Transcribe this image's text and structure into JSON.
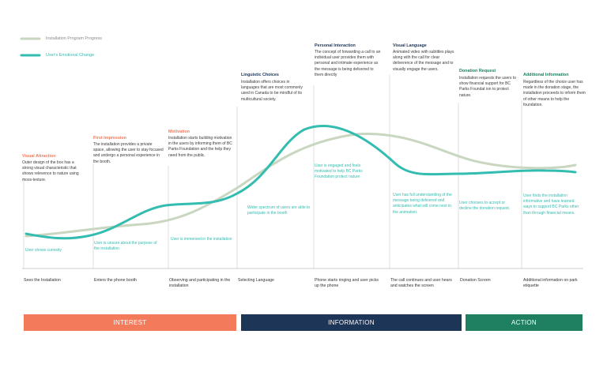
{
  "legend": {
    "progress_label": "Installation Program Progress",
    "emotion_label": "User's Emotional Change",
    "progress_color": "#c9d6c0",
    "emotion_color": "#33bcb0"
  },
  "colors": {
    "orange": "#f37a5a",
    "navy": "#1d3557",
    "green": "#1e7f61"
  },
  "cards": [
    {
      "title": "Visual Attraction",
      "text": "Outer design of the box has a strong visual characteristic that shows relevence to nature using moss-texture."
    },
    {
      "title": "First Impression",
      "text": "The installation provides a private space, allowing the user to stay focused and undergo a personal experience in the booth."
    },
    {
      "title": "Motivation",
      "text": "Installation starts building motivation in the users by informing them of BC Parks Foundation and the help they need from the public."
    },
    {
      "title": "Linguistic Choices",
      "text": "Installation offers choices in languages that are most commonly used in Canada to be mindful of its multicultural society."
    },
    {
      "title": "Personal Interaction",
      "text": "The concept of forwarding a call to an individual user provides them with personal and intimate experience as the message is being delivered to them directly"
    },
    {
      "title": "Visual Language",
      "text": "Animated video with subtitles plays along with the call for clear deliverence of the message and to visually engage the users."
    },
    {
      "title": "Donation Request",
      "text": "Installation requests the users to show financial support for BC Parks Foundat ion to protect nature."
    },
    {
      "title": "Additional Information",
      "text": "Regardless of the choice user has made in the donation stage, the installation proceeds to inform them of other means to help the foundation."
    }
  ],
  "emotion_notes": [
    "User shows curiosity",
    "User is unsure about the purpose of the installation",
    "User is immersed in the installation",
    "Wider spectrum of users are able to participate in the booth",
    "User is engaged and feels motivated to help BC Parks Foundation protect nature",
    "User has full understanding of the message being delivered and anticipates what will come next in the animation.",
    "User chooses to accept or decline the donation request.",
    "User finds the installation informative and have learned ways to support BC Parks other than through financial means."
  ],
  "stages": [
    "Sees the Installation",
    "Enters the phone booth",
    "Observing and participating in the installation",
    "Selecting Language",
    "Phone starts ringing and user picks up the phone",
    "The call continues and user hears and watches the screen",
    "Donation Screen",
    "Additional information on park etiquette"
  ],
  "phases": [
    {
      "label": "INTEREST"
    },
    {
      "label": "INFORMATION"
    },
    {
      "label": "ACTION"
    }
  ]
}
